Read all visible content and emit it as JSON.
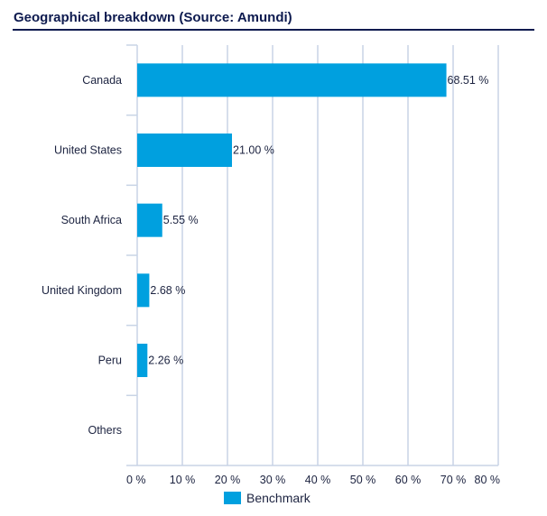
{
  "chart_data": {
    "type": "bar",
    "orientation": "horizontal",
    "title": "Geographical breakdown (Source: Amundi)",
    "categories": [
      "Canada",
      "United States",
      "South Africa",
      "United Kingdom",
      "Peru",
      "Others"
    ],
    "series": [
      {
        "name": "Benchmark",
        "values": [
          68.51,
          21.0,
          5.55,
          2.68,
          2.26,
          null
        ],
        "labels": [
          "68.51 %",
          "21.00 %",
          "5.55 %",
          "2.68 %",
          "2.26 %",
          ""
        ],
        "color": "#00a0df"
      }
    ],
    "xlim": [
      0,
      80
    ],
    "xticks": [
      0,
      10,
      20,
      30,
      40,
      50,
      60,
      70,
      80
    ],
    "xtick_labels": [
      "0 %",
      "10 %",
      "20 %",
      "30 %",
      "40 %",
      "50 %",
      "60 %",
      "70 %",
      "80 %"
    ],
    "grid": true,
    "grid_color": "#c8d4e6",
    "legend_placement": "bottom"
  }
}
